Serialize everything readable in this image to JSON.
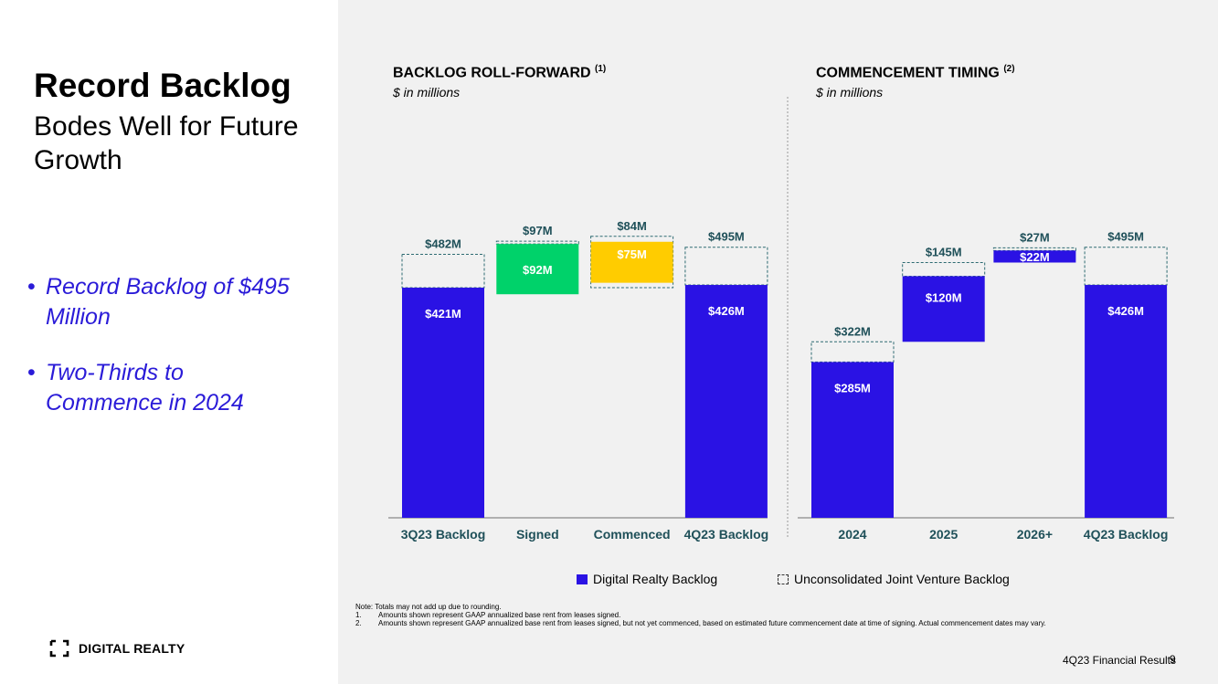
{
  "slide": {
    "title": "Record Backlog",
    "subtitle": "Bodes Well for Future Growth",
    "bullets": [
      "Record Backlog of $495 Million",
      "Two-Thirds to Commence in 2024"
    ],
    "logo_text": "DIGITAL REALTY",
    "footer": "4Q23 Financial Results",
    "page": "9"
  },
  "legend": {
    "solid_label": "Digital Realty Backlog",
    "dashed_label": "Unconsolidated Joint Venture Backlog"
  },
  "notes": {
    "intro": "Note:  Totals may not add up due to rounding.",
    "items": [
      {
        "num": "1.",
        "text": "Amounts shown represent GAAP annualized base rent from leases signed."
      },
      {
        "num": "2.",
        "text": "Amounts shown represent GAAP annualized base rent from leases signed, but not yet commenced, based on estimated future commencement date at time of signing.  Actual commencement dates may vary."
      }
    ]
  },
  "colors": {
    "blue": "#2a12e4",
    "green": "#00d26a",
    "yellow": "#ffcc00",
    "dash": "#2e6b72",
    "label_teal": "#1f5059"
  },
  "chart_data": [
    {
      "type": "bar",
      "subtype": "waterfall",
      "title": "BACKLOG ROLL-FORWARD",
      "title_note": "(1)",
      "subtitle": "$ in millions",
      "ylim": [
        0,
        560
      ],
      "categories": [
        "3Q23 Backlog",
        "Signed",
        "Commenced",
        "4Q23 Backlog"
      ],
      "bars": [
        {
          "category": "3Q23 Backlog",
          "kind": "total",
          "base": 0,
          "consolidated": 421,
          "total": 482,
          "color": "blue",
          "inner_label": "$421M",
          "top_label": "$482M"
        },
        {
          "category": "Signed",
          "kind": "increase",
          "base": 409,
          "consolidated": 92,
          "total": 97,
          "color": "green",
          "inner_label": "$92M",
          "top_label": "$97M"
        },
        {
          "category": "Commenced",
          "kind": "decrease",
          "base": 421,
          "consolidated": 75,
          "total": 84,
          "color": "yellow",
          "inner_label": "$75M",
          "top_label": "$84M"
        },
        {
          "category": "4Q23 Backlog",
          "kind": "total",
          "base": 0,
          "consolidated": 426,
          "total": 495,
          "color": "blue",
          "inner_label": "$426M",
          "top_label": "$495M"
        }
      ]
    },
    {
      "type": "bar",
      "subtype": "waterfall",
      "title": "COMMENCEMENT TIMING",
      "title_note": "(2)",
      "subtitle": "$ in millions",
      "ylim": [
        0,
        560
      ],
      "categories": [
        "2024",
        "2025",
        "2026+",
        "4Q23 Backlog"
      ],
      "bars": [
        {
          "category": "2024",
          "kind": "total",
          "base": 0,
          "consolidated": 285,
          "total": 322,
          "color": "blue",
          "inner_label": "$285M",
          "top_label": "$322M"
        },
        {
          "category": "2025",
          "kind": "increase",
          "base": 322,
          "consolidated": 120,
          "total": 145,
          "color": "blue",
          "inner_label": "$120M",
          "top_label": "$145M"
        },
        {
          "category": "2026+",
          "kind": "increase",
          "base": 467,
          "consolidated": 22,
          "total": 27,
          "color": "blue",
          "inner_label": "$22M",
          "top_label": "$27M"
        },
        {
          "category": "4Q23 Backlog",
          "kind": "total",
          "base": 0,
          "consolidated": 426,
          "total": 495,
          "color": "blue",
          "inner_label": "$426M",
          "top_label": "$495M"
        }
      ]
    }
  ]
}
